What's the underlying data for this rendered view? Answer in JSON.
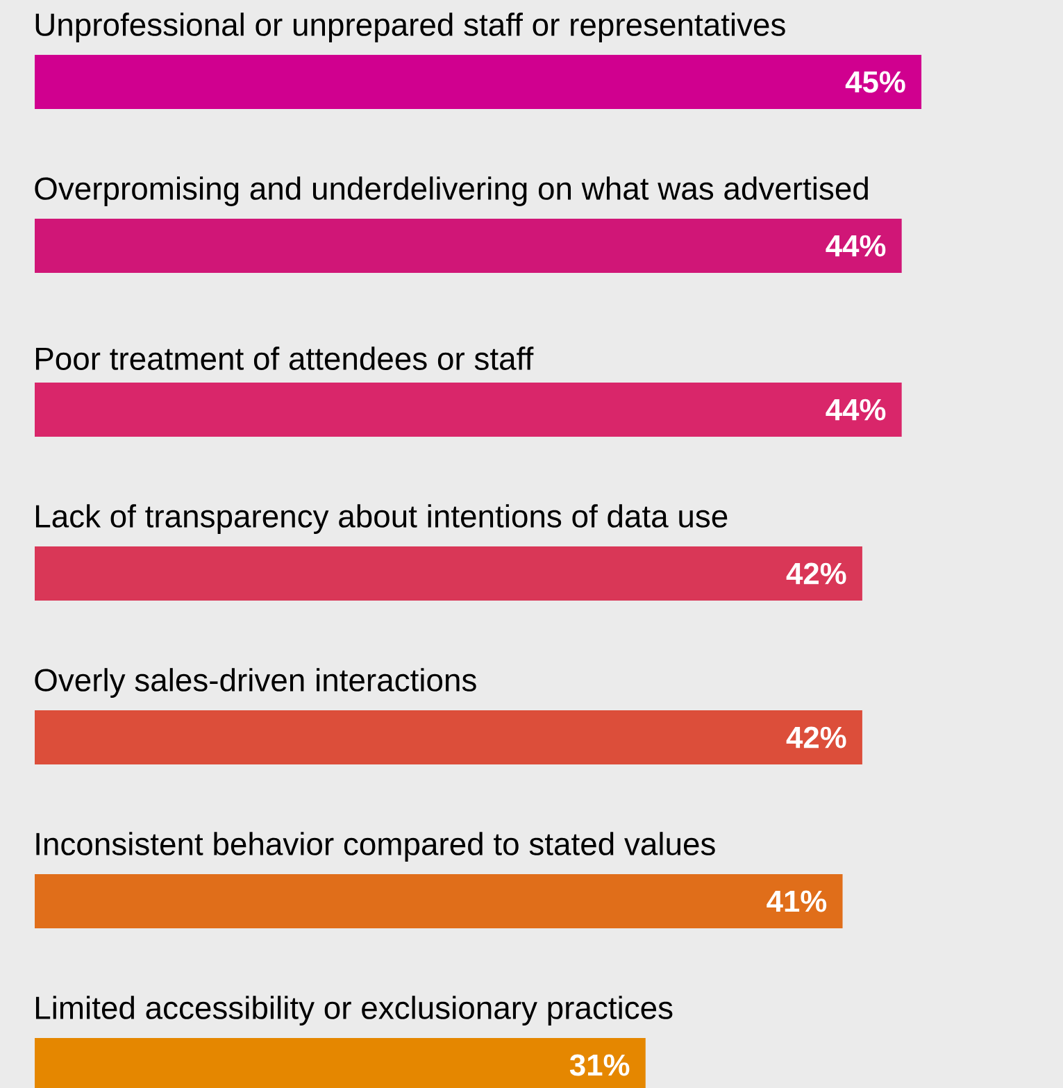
{
  "chart_data": {
    "type": "bar",
    "orientation": "horizontal",
    "categories": [
      "Unprofessional or unprepared staff or representatives",
      "Overpromising and underdelivering on what was advertised",
      "Poor treatment of attendees or staff",
      "Lack of transparency about intentions of data use",
      "Overly sales-driven interactions",
      "Inconsistent behavior compared to stated values",
      "Limited accessibility or exclusionary practices"
    ],
    "values": [
      45,
      44,
      44,
      42,
      42,
      41,
      31
    ],
    "value_labels": [
      "45%",
      "44%",
      "44%",
      "42%",
      "42%",
      "41%",
      "31%"
    ],
    "colors": [
      "#d0008f",
      "#d01677",
      "#d9266a",
      "#d93757",
      "#dc4e3a",
      "#e06e1a",
      "#e58700"
    ]
  }
}
